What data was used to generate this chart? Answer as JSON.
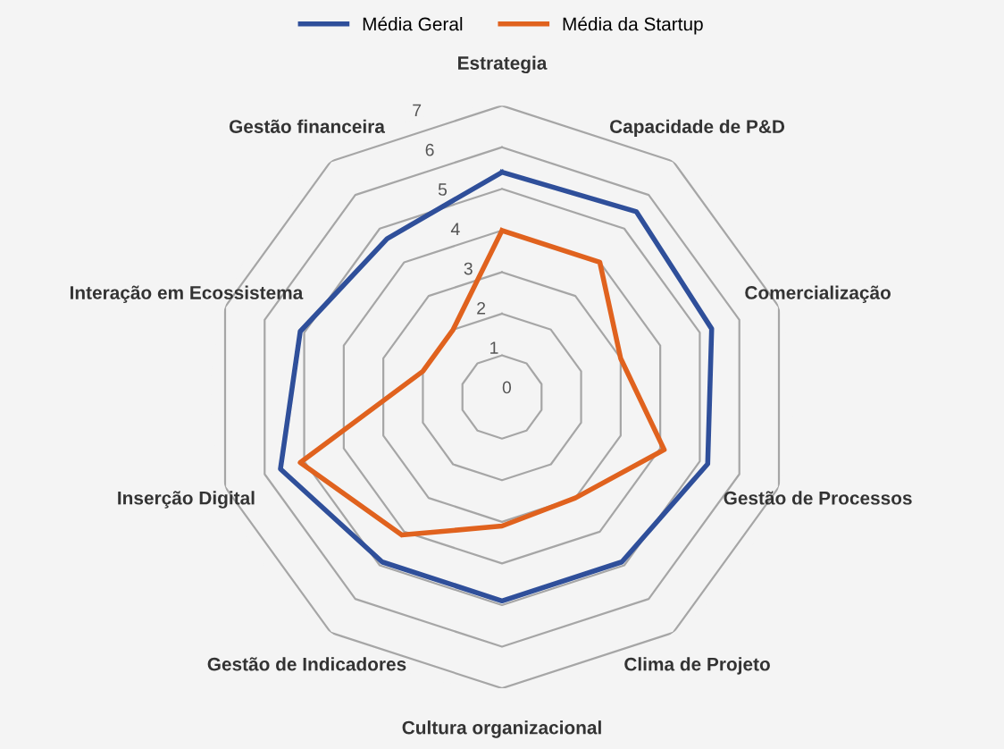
{
  "chart_data": {
    "type": "radar",
    "categories": [
      "Estrategia",
      "Capacidade de P&D",
      "Comercialização",
      "Gestão de Processos",
      "Clima de Projeto",
      "Cultura organizacional",
      "Gestão de Indicadores",
      "Inserção Digital",
      "Interação em Ecossistema",
      "Gestão financeira"
    ],
    "series": [
      {
        "name": "Média Geral",
        "color": "#2f4f9a",
        "values": [
          5.4,
          5.5,
          5.3,
          5.2,
          4.9,
          4.9,
          4.9,
          5.6,
          5.1,
          4.7
        ]
      },
      {
        "name": "Média da Startup",
        "color": "#e0621e",
        "values": [
          4.0,
          4.0,
          3.0,
          4.1,
          3.0,
          3.1,
          4.1,
          5.1,
          2.0,
          2.0
        ]
      }
    ],
    "ylim": [
      0,
      7
    ],
    "yticks": [
      0,
      1,
      2,
      3,
      4,
      5,
      6,
      7
    ],
    "grid": true,
    "legend": "top"
  }
}
